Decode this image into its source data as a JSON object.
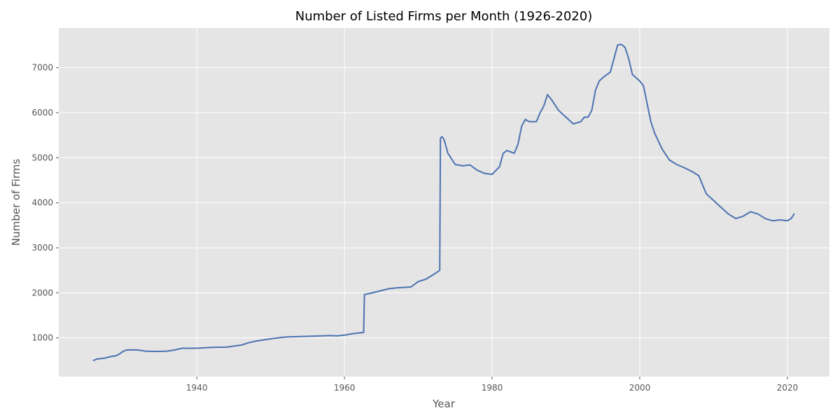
{
  "chart_data": {
    "type": "line",
    "title": "Number of Listed Firms per Month (1926-2020)",
    "xlabel": "Year",
    "ylabel": "Number of Firms",
    "xlim": [
      1921.3,
      2025.7
    ],
    "ylim": [
      140,
      7880
    ],
    "xticks": [
      1940,
      1960,
      1980,
      2000,
      2020
    ],
    "yticks": [
      1000,
      2000,
      3000,
      4000,
      5000,
      6000,
      7000
    ],
    "grid": true,
    "style": "ggplot",
    "colors": {
      "background": "#e5e5e5",
      "grid": "#ffffff",
      "line": "#4c72b0"
    },
    "series": [
      {
        "points": [
          [
            1926.0,
            500
          ],
          [
            1926.5,
            530
          ],
          [
            1927.5,
            550
          ],
          [
            1928.5,
            590
          ],
          [
            1929.0,
            600
          ],
          [
            1929.5,
            640
          ],
          [
            1930.0,
            700
          ],
          [
            1930.5,
            730
          ],
          [
            1931.0,
            735
          ],
          [
            1932.0,
            730
          ],
          [
            1932.5,
            720
          ],
          [
            1933.0,
            705
          ],
          [
            1934.0,
            700
          ],
          [
            1935.0,
            700
          ],
          [
            1936.0,
            705
          ],
          [
            1937.0,
            730
          ],
          [
            1938.0,
            770
          ],
          [
            1939.0,
            770
          ],
          [
            1940.0,
            770
          ],
          [
            1942.0,
            790
          ],
          [
            1944.0,
            795
          ],
          [
            1946.0,
            840
          ],
          [
            1947.0,
            890
          ],
          [
            1948.0,
            930
          ],
          [
            1950.0,
            980
          ],
          [
            1952.0,
            1020
          ],
          [
            1954.0,
            1030
          ],
          [
            1956.0,
            1040
          ],
          [
            1958.0,
            1050
          ],
          [
            1959.0,
            1045
          ],
          [
            1960.0,
            1060
          ],
          [
            1961.0,
            1090
          ],
          [
            1962.0,
            1110
          ],
          [
            1962.6,
            1120
          ],
          [
            1962.7,
            1960
          ],
          [
            1963.5,
            1990
          ],
          [
            1965.0,
            2050
          ],
          [
            1966.0,
            2090
          ],
          [
            1967.0,
            2110
          ],
          [
            1968.0,
            2120
          ],
          [
            1969.0,
            2130
          ],
          [
            1970.0,
            2250
          ],
          [
            1971.0,
            2300
          ],
          [
            1972.0,
            2400
          ],
          [
            1972.9,
            2500
          ],
          [
            1973.0,
            5430
          ],
          [
            1973.2,
            5470
          ],
          [
            1973.5,
            5400
          ],
          [
            1974.0,
            5100
          ],
          [
            1975.0,
            4850
          ],
          [
            1976.0,
            4820
          ],
          [
            1977.0,
            4840
          ],
          [
            1978.0,
            4720
          ],
          [
            1979.0,
            4650
          ],
          [
            1980.0,
            4630
          ],
          [
            1981.0,
            4800
          ],
          [
            1981.5,
            5100
          ],
          [
            1982.0,
            5160
          ],
          [
            1983.0,
            5100
          ],
          [
            1983.5,
            5300
          ],
          [
            1984.0,
            5700
          ],
          [
            1984.5,
            5850
          ],
          [
            1985.0,
            5800
          ],
          [
            1986.0,
            5800
          ],
          [
            1986.5,
            6000
          ],
          [
            1987.0,
            6150
          ],
          [
            1987.5,
            6400
          ],
          [
            1988.0,
            6300
          ],
          [
            1989.0,
            6050
          ],
          [
            1990.0,
            5900
          ],
          [
            1991.0,
            5750
          ],
          [
            1992.0,
            5800
          ],
          [
            1992.5,
            5900
          ],
          [
            1993.0,
            5900
          ],
          [
            1993.5,
            6050
          ],
          [
            1994.0,
            6500
          ],
          [
            1994.5,
            6700
          ],
          [
            1995.0,
            6780
          ],
          [
            1996.0,
            6900
          ],
          [
            1996.5,
            7200
          ],
          [
            1997.0,
            7500
          ],
          [
            1997.5,
            7520
          ],
          [
            1998.0,
            7450
          ],
          [
            1998.5,
            7200
          ],
          [
            1999.0,
            6850
          ],
          [
            2000.0,
            6700
          ],
          [
            2000.5,
            6600
          ],
          [
            2001.0,
            6200
          ],
          [
            2001.5,
            5800
          ],
          [
            2002.0,
            5550
          ],
          [
            2003.0,
            5200
          ],
          [
            2004.0,
            4950
          ],
          [
            2005.0,
            4850
          ],
          [
            2006.0,
            4780
          ],
          [
            2007.0,
            4700
          ],
          [
            2008.0,
            4600
          ],
          [
            2009.0,
            4200
          ],
          [
            2010.0,
            4050
          ],
          [
            2011.0,
            3900
          ],
          [
            2012.0,
            3750
          ],
          [
            2013.0,
            3650
          ],
          [
            2014.0,
            3700
          ],
          [
            2015.0,
            3800
          ],
          [
            2016.0,
            3750
          ],
          [
            2017.0,
            3650
          ],
          [
            2018.0,
            3600
          ],
          [
            2019.0,
            3620
          ],
          [
            2020.0,
            3600
          ],
          [
            2020.5,
            3650
          ],
          [
            2020.9,
            3750
          ]
        ]
      }
    ]
  }
}
